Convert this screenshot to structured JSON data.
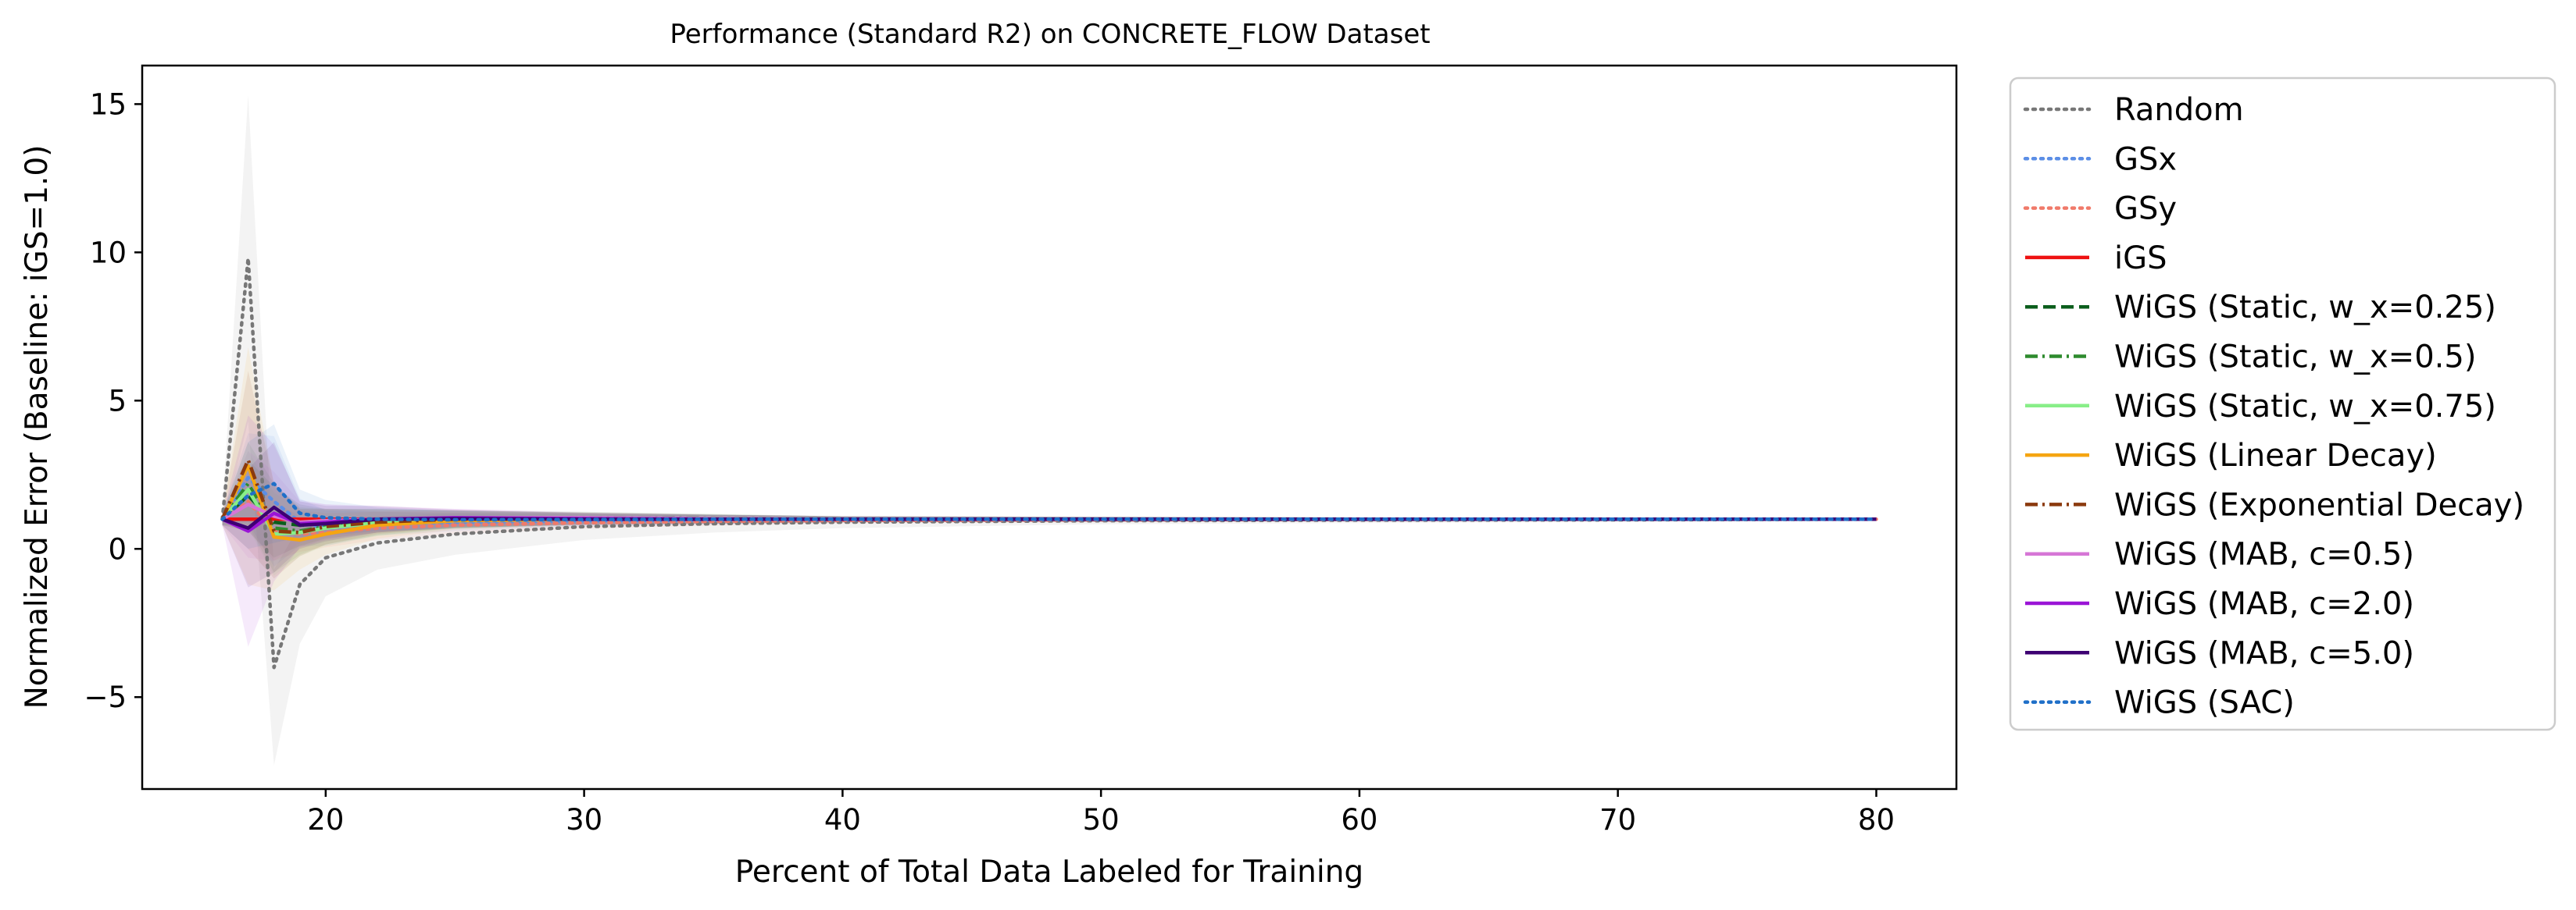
{
  "chart_data": {
    "type": "line",
    "title": "Performance (Standard R2) on CONCRETE_FLOW Dataset",
    "xlabel": "Percent of Total Data Labeled for Training",
    "ylabel": "Normalized Error (Baseline: iGS=1.0)",
    "xlim": [
      12.9,
      83.1
    ],
    "ylim": [
      -8.1,
      16.3
    ],
    "xticks": [
      20,
      30,
      40,
      50,
      60,
      70,
      80
    ],
    "yticks": [
      -5,
      0,
      5,
      10,
      15
    ],
    "xtick_labels": [
      "20",
      "30",
      "40",
      "50",
      "60",
      "70",
      "80"
    ],
    "ytick_labels": [
      "−5",
      "0",
      "5",
      "10",
      "15"
    ],
    "grid": false,
    "legend_position": "outside-right",
    "x": [
      16,
      17,
      18,
      19,
      20,
      22,
      25,
      30,
      35,
      40,
      50,
      60,
      70,
      80
    ],
    "series": [
      {
        "name": "Random",
        "color": "#777777",
        "dash": "dotted",
        "values": [
          1.0,
          9.8,
          -4.0,
          -1.2,
          -0.3,
          0.2,
          0.5,
          0.75,
          0.85,
          0.9,
          0.95,
          0.97,
          0.98,
          1.0
        ],
        "band": [
          0.3,
          5.5,
          3.3,
          2.0,
          1.3,
          0.9,
          0.7,
          0.45,
          0.3,
          0.2,
          0.12,
          0.1,
          0.08,
          0.05
        ]
      },
      {
        "name": "GSx",
        "color": "#5b8ee6",
        "dash": "dotted",
        "values": [
          1.0,
          2.4,
          1.6,
          0.9,
          0.7,
          0.85,
          0.9,
          0.95,
          0.97,
          0.98,
          0.99,
          1.0,
          1.0,
          1.0
        ],
        "band": [
          0.2,
          1.5,
          2.2,
          0.8,
          0.6,
          0.4,
          0.3,
          0.2,
          0.15,
          0.1,
          0.08,
          0.06,
          0.05,
          0.04
        ]
      },
      {
        "name": "GSy",
        "color": "#f07a6a",
        "dash": "dotted",
        "values": [
          1.0,
          1.6,
          0.6,
          0.5,
          0.55,
          0.7,
          0.8,
          0.88,
          0.93,
          0.96,
          0.98,
          0.99,
          1.0,
          1.0
        ],
        "band": [
          0.2,
          1.0,
          1.0,
          0.6,
          0.5,
          0.4,
          0.3,
          0.2,
          0.15,
          0.1,
          0.08,
          0.06,
          0.05,
          0.04
        ]
      },
      {
        "name": "iGS",
        "color": "#ee1111",
        "dash": "solid",
        "values": [
          1.0,
          1.0,
          1.0,
          1.0,
          1.0,
          1.0,
          1.0,
          1.0,
          1.0,
          1.0,
          1.0,
          1.0,
          1.0,
          1.0
        ],
        "band": [
          0,
          0,
          0,
          0,
          0,
          0,
          0,
          0,
          0,
          0,
          0,
          0,
          0,
          0
        ]
      },
      {
        "name": "WiGS (Static, w_x=0.25)",
        "color": "#0b5e1c",
        "dash": "dashed",
        "values": [
          1.0,
          1.8,
          0.9,
          0.8,
          0.85,
          0.95,
          1.0,
          1.02,
          1.01,
          1.0,
          1.0,
          1.0,
          1.0,
          1.0
        ],
        "band": [
          0.2,
          1.2,
          1.2,
          0.7,
          0.5,
          0.4,
          0.3,
          0.2,
          0.15,
          0.1,
          0.08,
          0.06,
          0.05,
          0.04
        ]
      },
      {
        "name": "WiGS (Static, w_x=0.5)",
        "color": "#2e8b2e",
        "dash": "dashdot",
        "values": [
          1.0,
          2.2,
          0.7,
          0.6,
          0.75,
          0.9,
          1.0,
          1.05,
          1.03,
          1.0,
          1.0,
          1.0,
          1.0,
          1.0
        ],
        "band": [
          0.2,
          1.4,
          1.5,
          0.8,
          0.6,
          0.45,
          0.3,
          0.2,
          0.15,
          0.1,
          0.08,
          0.06,
          0.05,
          0.04
        ]
      },
      {
        "name": "WiGS (Static, w_x=0.75)",
        "color": "#88ee88",
        "dash": "solid",
        "values": [
          1.0,
          2.0,
          0.5,
          0.55,
          0.7,
          0.88,
          0.98,
          1.04,
          1.02,
          1.0,
          1.0,
          1.0,
          1.0,
          1.0
        ],
        "band": [
          0.2,
          1.3,
          1.4,
          0.8,
          0.6,
          0.45,
          0.3,
          0.2,
          0.15,
          0.1,
          0.08,
          0.06,
          0.05,
          0.04
        ]
      },
      {
        "name": "WiGS (Linear Decay)",
        "color": "#f5a511",
        "dash": "solid",
        "values": [
          1.0,
          2.8,
          0.4,
          0.3,
          0.5,
          0.8,
          0.95,
          1.0,
          1.0,
          1.0,
          1.0,
          1.0,
          1.0,
          1.0
        ],
        "band": [
          0.2,
          4.0,
          1.8,
          1.0,
          0.7,
          0.45,
          0.3,
          0.2,
          0.15,
          0.1,
          0.08,
          0.06,
          0.05,
          0.04
        ]
      },
      {
        "name": "WiGS (Exponential Decay)",
        "color": "#8b3a0e",
        "dash": "dashdot",
        "values": [
          1.0,
          3.0,
          0.6,
          0.55,
          0.75,
          0.9,
          1.0,
          1.02,
          1.0,
          1.0,
          1.0,
          1.0,
          1.0,
          1.0
        ],
        "band": [
          0.2,
          3.0,
          1.6,
          0.8,
          0.6,
          0.4,
          0.3,
          0.2,
          0.15,
          0.1,
          0.08,
          0.06,
          0.05,
          0.04
        ]
      },
      {
        "name": "WiGS (MAB, c=0.5)",
        "color": "#d676d6",
        "dash": "solid",
        "values": [
          1.0,
          1.5,
          1.1,
          0.9,
          0.95,
          1.0,
          1.05,
          1.05,
          1.02,
          1.0,
          1.0,
          1.0,
          1.0,
          1.0
        ],
        "band": [
          0.2,
          1.8,
          1.5,
          0.7,
          0.55,
          0.4,
          0.3,
          0.2,
          0.15,
          0.1,
          0.08,
          0.06,
          0.05,
          0.04
        ]
      },
      {
        "name": "WiGS (MAB, c=2.0)",
        "color": "#9a14d6",
        "dash": "solid",
        "values": [
          1.0,
          0.6,
          1.2,
          0.85,
          0.9,
          1.0,
          1.05,
          1.02,
          1.0,
          1.0,
          1.0,
          1.0,
          1.0,
          1.0
        ],
        "band": [
          0.2,
          3.9,
          2.3,
          0.8,
          0.6,
          0.45,
          0.3,
          0.2,
          0.15,
          0.1,
          0.08,
          0.06,
          0.05,
          0.04
        ]
      },
      {
        "name": "WiGS (MAB, c=5.0)",
        "color": "#3d0072",
        "dash": "solid",
        "values": [
          1.0,
          0.7,
          1.4,
          0.8,
          0.85,
          1.0,
          1.02,
          1.0,
          1.0,
          1.0,
          1.0,
          1.0,
          1.0,
          1.0
        ],
        "band": [
          0.2,
          2.0,
          2.2,
          0.8,
          0.6,
          0.45,
          0.3,
          0.2,
          0.15,
          0.1,
          0.08,
          0.06,
          0.05,
          0.04
        ]
      },
      {
        "name": "WiGS (SAC)",
        "color": "#1f6fc8",
        "dash": "dotted",
        "values": [
          1.0,
          1.8,
          2.2,
          1.2,
          1.05,
          1.0,
          0.98,
          0.99,
          1.0,
          1.0,
          1.0,
          1.0,
          1.0,
          1.0
        ],
        "band": [
          0.2,
          1.8,
          2.0,
          0.8,
          0.6,
          0.4,
          0.3,
          0.2,
          0.15,
          0.1,
          0.08,
          0.06,
          0.05,
          0.04
        ]
      }
    ]
  }
}
